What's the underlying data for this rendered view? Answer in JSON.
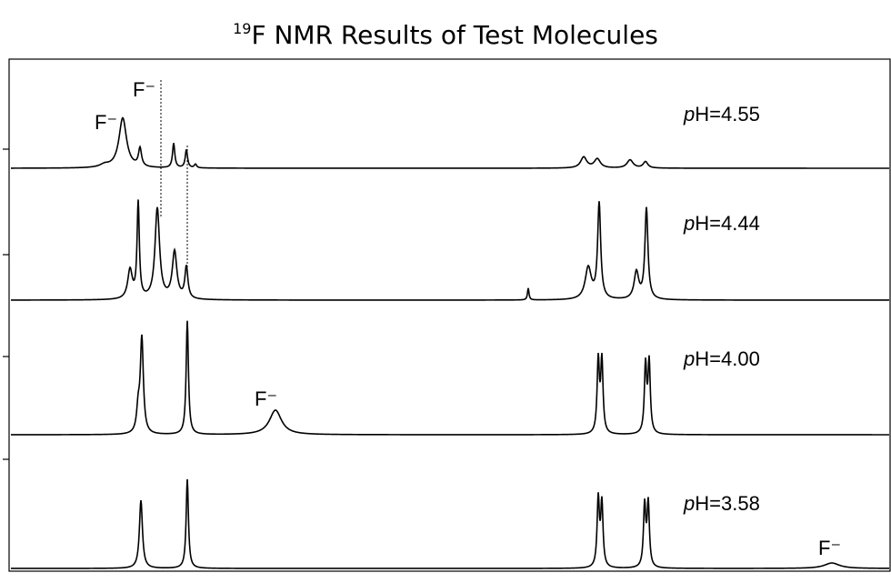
{
  "chart_data": {
    "type": "spectra",
    "title_superscript": "19",
    "title": "F NMR Results of Test Molecules",
    "traces": [
      {
        "italic": "p",
        "label": "H=4.55"
      },
      {
        "italic": "p",
        "label": "H=4.44"
      },
      {
        "italic": "p",
        "label": "H=4.00"
      },
      {
        "italic": "p",
        "label": "H=3.58"
      }
    ],
    "annotations": [
      "F⁻",
      "F⁻",
      "F⁻",
      "F⁻"
    ]
  }
}
